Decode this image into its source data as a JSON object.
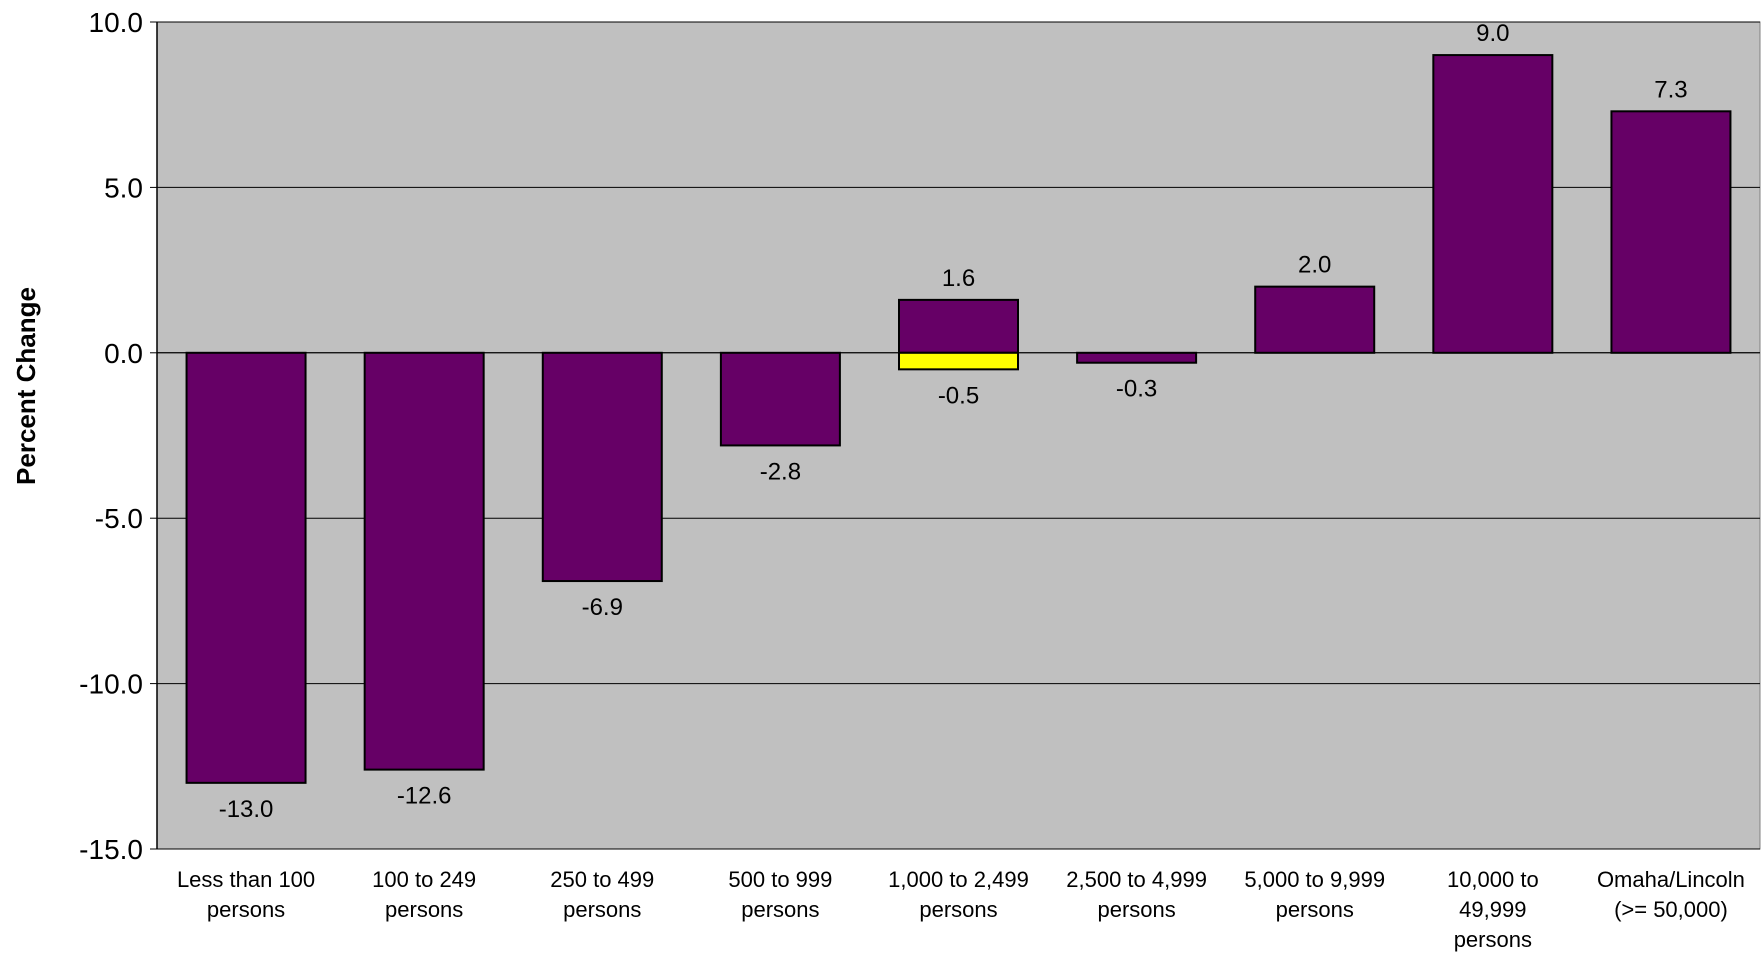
{
  "chart_data": {
    "type": "bar",
    "title": "",
    "ylabel": "Percent Change",
    "xlabel": "",
    "ylim": [
      -15,
      10
    ],
    "yticks": [
      10,
      5,
      0,
      -5,
      -10,
      -15
    ],
    "ytick_labels": [
      "10.0",
      "5.0",
      "0.0",
      "-5.0",
      "-10.0",
      "-15.0"
    ],
    "grid": true,
    "legend": "none",
    "categories": [
      "Less than 100 persons",
      "100 to 249 persons",
      "250 to 499 persons",
      "500 to 999 persons",
      "1,000 to 2,499 persons",
      "2,500 to 4,999 persons",
      "5,000 to 9,999 persons",
      "10,000 to 49,999 persons",
      "Omaha/Lincoln (>= 50,000)"
    ],
    "category_label_lines": [
      [
        "Less than 100",
        "persons"
      ],
      [
        "100 to 249",
        "persons"
      ],
      [
        "250 to 499",
        "persons"
      ],
      [
        "500 to 999",
        "persons"
      ],
      [
        "1,000 to 2,499",
        "persons"
      ],
      [
        "2,500 to 4,999",
        "persons"
      ],
      [
        "5,000 to 9,999",
        "persons"
      ],
      [
        "10,000 to",
        "49,999",
        "persons"
      ],
      [
        "Omaha/Lincoln",
        "(>= 50,000)"
      ]
    ],
    "series": [
      {
        "values": [
          -13.0,
          -12.6,
          -6.9,
          -2.8,
          1.6,
          -0.3,
          2.0,
          9.0,
          7.3
        ],
        "labels": [
          "-13.0",
          "-12.6",
          "-6.9",
          "-2.8",
          "1.6",
          "-0.3",
          "2.0",
          "9.0",
          "7.3"
        ],
        "color": "#660066"
      },
      {
        "values": [
          null,
          null,
          null,
          null,
          -0.5,
          null,
          null,
          null,
          null
        ],
        "labels": [
          null,
          null,
          null,
          null,
          "-0.5",
          null,
          null,
          null,
          null
        ],
        "color": "#FFFF00"
      }
    ],
    "plot_background": "#C0C0C0",
    "bar_outline_color": "#000000"
  }
}
